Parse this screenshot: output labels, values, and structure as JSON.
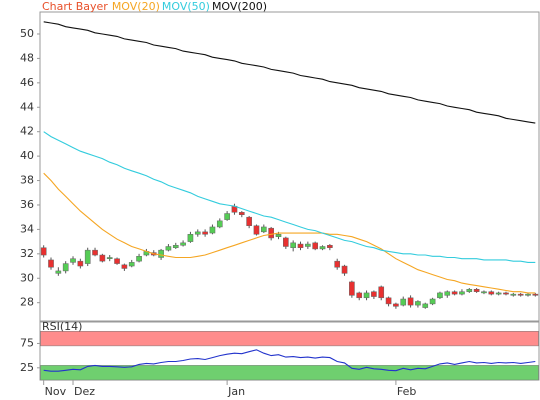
{
  "chart_data": {
    "type": "candlestick",
    "title": "Chart Bayer",
    "title_color": "#e8502a",
    "categories": [
      "Nov",
      null,
      null,
      null,
      "Dez",
      null,
      null,
      null,
      null,
      null,
      null,
      null,
      null,
      null,
      null,
      null,
      null,
      null,
      null,
      null,
      null,
      null,
      null,
      null,
      null,
      "Jan",
      null,
      null,
      null,
      null,
      null,
      null,
      null,
      null,
      null,
      null,
      null,
      null,
      null,
      null,
      null,
      null,
      null,
      null,
      null,
      null,
      null,
      null,
      "Feb",
      null,
      null,
      null,
      null,
      null,
      null,
      null,
      null,
      null,
      null,
      null,
      null,
      null,
      null,
      null,
      null,
      null,
      null,
      null
    ],
    "open": [
      32.5,
      31.5,
      30.4,
      30.6,
      31.3,
      31.4,
      31.2,
      32.3,
      31.9,
      31.6,
      31.6,
      31.1,
      31.0,
      31.4,
      31.9,
      32.1,
      31.7,
      32.3,
      32.5,
      32.7,
      33.0,
      33.6,
      33.8,
      33.7,
      34.2,
      34.8,
      35.9,
      35.4,
      35.0,
      34.3,
      33.8,
      34.1,
      33.4,
      33.3,
      32.5,
      32.8,
      32.6,
      32.9,
      32.4,
      32.7,
      31.4,
      31.0,
      29.7,
      28.8,
      28.4,
      28.9,
      29.3,
      28.4,
      27.9,
      27.8,
      28.4,
      27.8,
      27.6,
      27.9,
      28.4,
      28.6,
      28.9,
      28.7,
      28.9,
      29.1,
      28.8,
      28.9,
      28.7,
      28.8,
      28.6,
      28.7,
      28.6,
      28.7
    ],
    "high": [
      32.7,
      31.7,
      30.9,
      31.4,
      31.8,
      31.6,
      32.5,
      32.5,
      32.0,
      31.9,
      31.7,
      31.2,
      31.5,
      32.0,
      32.4,
      32.3,
      32.4,
      32.8,
      32.9,
      33.1,
      33.8,
      34.0,
      34.0,
      34.4,
      34.9,
      35.5,
      36.1,
      35.5,
      35.1,
      34.4,
      34.4,
      34.2,
      33.8,
      33.4,
      33.1,
      33.0,
      33.0,
      33.0,
      32.7,
      32.8,
      31.6,
      31.1,
      29.8,
      28.9,
      29.0,
      29.0,
      29.4,
      28.5,
      28.0,
      28.5,
      28.6,
      28.2,
      28.0,
      28.4,
      28.9,
      29.0,
      29.0,
      29.1,
      29.2,
      29.2,
      29.0,
      29.0,
      28.9,
      28.9,
      28.8,
      28.8,
      28.8,
      28.8
    ],
    "low": [
      31.7,
      30.7,
      30.2,
      30.4,
      31.1,
      30.8,
      31.0,
      31.8,
      31.3,
      31.4,
      31.1,
      30.6,
      30.9,
      31.3,
      31.8,
      31.8,
      31.5,
      32.2,
      32.4,
      32.6,
      32.9,
      33.4,
      33.4,
      33.6,
      34.1,
      34.7,
      35.2,
      35.0,
      34.1,
      33.5,
      33.7,
      33.1,
      33.2,
      32.4,
      32.2,
      32.3,
      32.4,
      32.3,
      32.3,
      32.3,
      30.7,
      30.2,
      28.4,
      28.2,
      28.2,
      28.3,
      28.2,
      27.7,
      27.5,
      27.7,
      27.6,
      27.6,
      27.5,
      27.8,
      28.3,
      28.4,
      28.6,
      28.6,
      28.8,
      28.8,
      28.7,
      28.6,
      28.6,
      28.6,
      28.5,
      28.5,
      28.5,
      28.5
    ],
    "close": [
      31.9,
      30.9,
      30.6,
      31.2,
      31.6,
      31.0,
      32.3,
      31.9,
      31.4,
      31.7,
      31.2,
      30.8,
      31.3,
      31.8,
      32.2,
      31.9,
      32.3,
      32.6,
      32.7,
      32.9,
      33.6,
      33.8,
      33.6,
      34.2,
      34.7,
      35.3,
      35.4,
      35.2,
      34.3,
      33.6,
      34.2,
      33.3,
      33.6,
      32.6,
      32.9,
      32.5,
      32.8,
      32.4,
      32.6,
      32.5,
      30.9,
      30.4,
      28.6,
      28.4,
      28.8,
      28.5,
      28.4,
      27.9,
      27.7,
      28.3,
      27.8,
      28.1,
      27.9,
      28.3,
      28.8,
      28.9,
      28.7,
      28.9,
      29.1,
      28.9,
      28.9,
      28.7,
      28.8,
      28.7,
      28.7,
      28.6,
      28.7,
      28.6
    ],
    "up_color": "#55cc55",
    "down_color": "#e83030",
    "ylim": [
      26.5,
      51.8
    ],
    "yticks": [
      28,
      30,
      32,
      34,
      36,
      38,
      40,
      42,
      44,
      46,
      48,
      50
    ],
    "grid": false,
    "overlays": [
      {
        "name": "MOV(20)",
        "color": "#f5a623",
        "values": [
          38.6,
          38.0,
          37.3,
          36.7,
          36.1,
          35.5,
          35.0,
          34.5,
          34.0,
          33.6,
          33.2,
          32.9,
          32.6,
          32.4,
          32.2,
          32.0,
          31.9,
          31.8,
          31.7,
          31.7,
          31.7,
          31.8,
          31.9,
          32.1,
          32.3,
          32.5,
          32.7,
          32.9,
          33.1,
          33.3,
          33.5,
          33.6,
          33.7,
          33.7,
          33.7,
          33.7,
          33.7,
          33.7,
          33.7,
          33.6,
          33.6,
          33.5,
          33.4,
          33.2,
          33.0,
          32.7,
          32.4,
          32.0,
          31.6,
          31.3,
          31.0,
          30.7,
          30.5,
          30.3,
          30.1,
          29.9,
          29.8,
          29.6,
          29.5,
          29.4,
          29.3,
          29.2,
          29.1,
          29.0,
          28.9,
          28.9,
          28.8,
          28.8
        ]
      },
      {
        "name": "MOV(50)",
        "color": "#33ccdd",
        "values": [
          42.0,
          41.6,
          41.3,
          41.0,
          40.7,
          40.4,
          40.2,
          40.0,
          39.8,
          39.5,
          39.3,
          39.0,
          38.8,
          38.6,
          38.4,
          38.1,
          37.9,
          37.6,
          37.4,
          37.2,
          37.0,
          36.7,
          36.5,
          36.3,
          36.1,
          36.0,
          35.9,
          35.7,
          35.5,
          35.3,
          35.1,
          35.0,
          34.8,
          34.6,
          34.4,
          34.2,
          34.0,
          33.9,
          33.7,
          33.5,
          33.3,
          33.1,
          33.0,
          32.8,
          32.6,
          32.5,
          32.3,
          32.2,
          32.1,
          32.0,
          32.0,
          31.9,
          31.9,
          31.8,
          31.8,
          31.7,
          31.7,
          31.6,
          31.6,
          31.6,
          31.5,
          31.5,
          31.5,
          31.5,
          31.4,
          31.4,
          31.3,
          31.3
        ]
      },
      {
        "name": "MOV(200)",
        "color": "#111111",
        "values": [
          51.0,
          50.9,
          50.8,
          50.6,
          50.5,
          50.4,
          50.3,
          50.1,
          50.0,
          49.9,
          49.8,
          49.6,
          49.5,
          49.4,
          49.3,
          49.1,
          49.0,
          48.9,
          48.8,
          48.6,
          48.5,
          48.4,
          48.3,
          48.1,
          48.0,
          47.9,
          47.8,
          47.6,
          47.5,
          47.4,
          47.3,
          47.1,
          47.0,
          46.9,
          46.8,
          46.6,
          46.5,
          46.4,
          46.3,
          46.1,
          46.0,
          45.9,
          45.8,
          45.6,
          45.5,
          45.4,
          45.3,
          45.1,
          45.0,
          44.9,
          44.8,
          44.6,
          44.5,
          44.4,
          44.3,
          44.1,
          44.0,
          43.9,
          43.8,
          43.6,
          43.5,
          43.4,
          43.3,
          43.1,
          43.0,
          42.9,
          42.8,
          42.7
        ]
      }
    ],
    "indicator": {
      "name": "RSI(14)",
      "color": "#2233cc",
      "values": [
        20,
        18,
        18,
        20,
        22,
        21,
        28,
        30,
        28,
        28,
        27,
        26,
        27,
        32,
        34,
        33,
        36,
        38,
        38,
        40,
        43,
        44,
        42,
        46,
        50,
        53,
        55,
        54,
        58,
        62,
        55,
        50,
        52,
        47,
        48,
        46,
        47,
        45,
        47,
        46,
        38,
        35,
        24,
        22,
        26,
        23,
        22,
        20,
        19,
        24,
        21,
        24,
        23,
        28,
        33,
        35,
        32,
        35,
        38,
        35,
        36,
        34,
        36,
        35,
        36,
        34,
        36,
        38
      ],
      "ylim": [
        0,
        119
      ],
      "yticks": [
        25,
        75
      ],
      "bands": [
        {
          "from": 70,
          "to": 100,
          "color": "#ff8c8c"
        },
        {
          "from": 0,
          "to": 30,
          "color": "#6fcf6f"
        }
      ]
    }
  }
}
